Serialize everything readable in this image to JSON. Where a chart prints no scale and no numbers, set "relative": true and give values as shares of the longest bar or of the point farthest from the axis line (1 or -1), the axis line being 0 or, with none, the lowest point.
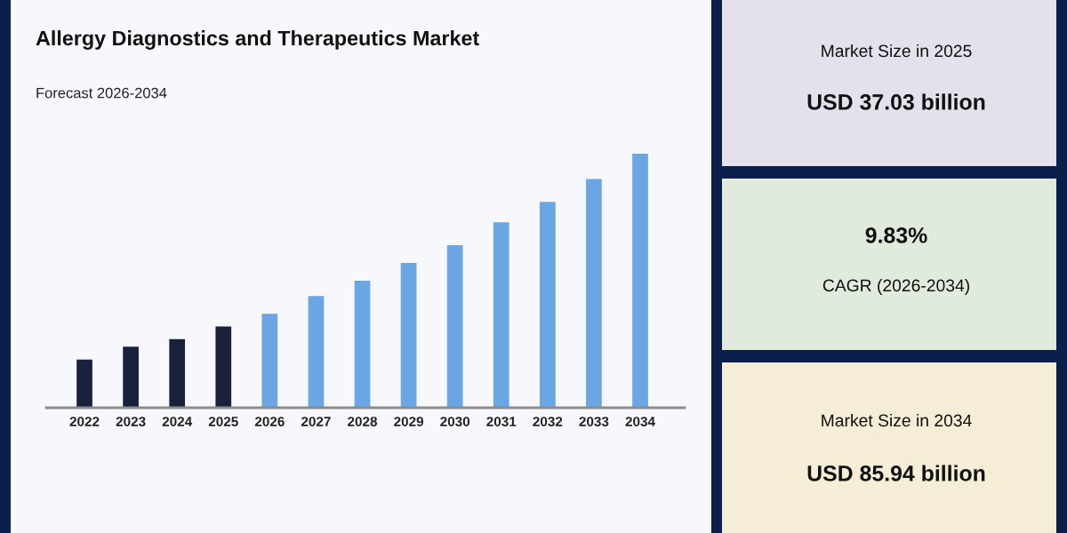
{
  "chart_data": [
    {
      "type": "bar",
      "title": "Allergy Diagnostics and Therapeutics Market",
      "subtitle": "Forecast 2026-2034",
      "categories": [
        "2022",
        "2023",
        "2024",
        "2025",
        "2026",
        "2027",
        "2028",
        "2029",
        "2030",
        "2031",
        "2032",
        "2033",
        "2034"
      ],
      "values": [
        0.19,
        0.24,
        0.27,
        0.32,
        0.37,
        0.44,
        0.5,
        0.57,
        0.64,
        0.73,
        0.81,
        0.9,
        1
      ],
      "colors": [
        "#19223a",
        "#19223a",
        "#19223a",
        "#19223a",
        "#6aa6e3",
        "#6aa6e3",
        "#6aa6e3",
        "#6aa6e3",
        "#6aa6e3",
        "#6aa6e3",
        "#6aa6e3",
        "#6aa6e3",
        "#6aa6e3"
      ],
      "relative": true
    },
    {
      "type": "other",
      "color": "#e4e0ec",
      "annotations": [
        "Market Size in 2025",
        "USD 37.03 billion"
      ]
    },
    {
      "type": "other",
      "color": "#e0ebde",
      "annotations": [
        "9.83%",
        "CAGR (2026-2034)"
      ]
    },
    {
      "type": "other",
      "color": "#f5edd6",
      "annotations": [
        "Market Size in 2034",
        "USD 85.94 billion"
      ]
    }
  ]
}
